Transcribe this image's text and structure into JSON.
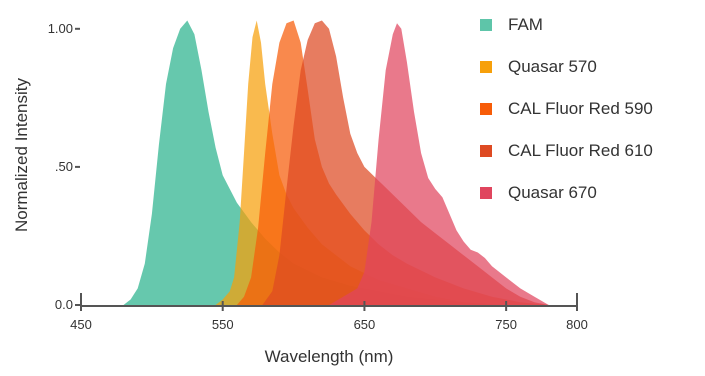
{
  "chart_data": {
    "type": "area",
    "title": "",
    "xlabel": "Wavelength (nm)",
    "ylabel": "Normalized Intensity",
    "xlim": [
      450,
      800
    ],
    "ylim": [
      0,
      1.05
    ],
    "x_ticks": [
      {
        "value": 450,
        "label": "450"
      },
      {
        "value": 550,
        "label": "550"
      },
      {
        "value": 650,
        "label": "650"
      },
      {
        "value": 750,
        "label": "750"
      },
      {
        "value": 800,
        "label": "800"
      }
    ],
    "y_ticks": [
      {
        "value": 0,
        "label": "0.0"
      },
      {
        "value": 0.5,
        "label": ".50"
      },
      {
        "value": 1.0,
        "label": "1.00"
      }
    ],
    "grid": false,
    "legend_position": "top-right",
    "series": [
      {
        "name": "FAM",
        "color": "#5ec5a9",
        "points": [
          [
            480,
            0
          ],
          [
            485,
            0.02
          ],
          [
            490,
            0.06
          ],
          [
            495,
            0.15
          ],
          [
            500,
            0.33
          ],
          [
            505,
            0.58
          ],
          [
            510,
            0.8
          ],
          [
            515,
            0.93
          ],
          [
            520,
            1.0
          ],
          [
            525,
            1.03
          ],
          [
            530,
            0.98
          ],
          [
            535,
            0.85
          ],
          [
            540,
            0.7
          ],
          [
            545,
            0.57
          ],
          [
            550,
            0.47
          ],
          [
            555,
            0.42
          ],
          [
            560,
            0.37
          ],
          [
            570,
            0.3
          ],
          [
            580,
            0.24
          ],
          [
            590,
            0.19
          ],
          [
            600,
            0.15
          ],
          [
            620,
            0.1
          ],
          [
            640,
            0.07
          ],
          [
            660,
            0.05
          ],
          [
            680,
            0.03
          ],
          [
            700,
            0.02
          ],
          [
            720,
            0.01
          ],
          [
            750,
            0
          ]
        ]
      },
      {
        "name": "Quasar 570",
        "color": "#f7a00a",
        "points": [
          [
            545,
            0
          ],
          [
            550,
            0.02
          ],
          [
            555,
            0.05
          ],
          [
            558,
            0.1
          ],
          [
            562,
            0.3
          ],
          [
            565,
            0.55
          ],
          [
            568,
            0.8
          ],
          [
            571,
            0.97
          ],
          [
            574,
            1.03
          ],
          [
            577,
            0.95
          ],
          [
            580,
            0.8
          ],
          [
            585,
            0.62
          ],
          [
            590,
            0.47
          ],
          [
            595,
            0.4
          ],
          [
            600,
            0.35
          ],
          [
            610,
            0.28
          ],
          [
            620,
            0.22
          ],
          [
            630,
            0.18
          ],
          [
            640,
            0.14
          ],
          [
            660,
            0.09
          ],
          [
            680,
            0.06
          ],
          [
            700,
            0.03
          ],
          [
            720,
            0.01
          ],
          [
            740,
            0
          ]
        ]
      },
      {
        "name": "CAL Fluor Red 590",
        "color": "#f75c08",
        "points": [
          [
            560,
            0
          ],
          [
            565,
            0.03
          ],
          [
            570,
            0.1
          ],
          [
            575,
            0.28
          ],
          [
            580,
            0.55
          ],
          [
            585,
            0.8
          ],
          [
            590,
            0.95
          ],
          [
            595,
            1.02
          ],
          [
            600,
            1.03
          ],
          [
            605,
            0.95
          ],
          [
            610,
            0.78
          ],
          [
            615,
            0.6
          ],
          [
            620,
            0.5
          ],
          [
            625,
            0.44
          ],
          [
            630,
            0.4
          ],
          [
            640,
            0.33
          ],
          [
            650,
            0.27
          ],
          [
            660,
            0.22
          ],
          [
            670,
            0.18
          ],
          [
            680,
            0.15
          ],
          [
            700,
            0.1
          ],
          [
            720,
            0.06
          ],
          [
            740,
            0.03
          ],
          [
            760,
            0.01
          ],
          [
            780,
            0
          ]
        ]
      },
      {
        "name": "CAL Fluor Red 610",
        "color": "#de4a22",
        "points": [
          [
            578,
            0
          ],
          [
            585,
            0.05
          ],
          [
            590,
            0.18
          ],
          [
            595,
            0.42
          ],
          [
            600,
            0.65
          ],
          [
            605,
            0.85
          ],
          [
            610,
            0.96
          ],
          [
            615,
            1.02
          ],
          [
            620,
            1.03
          ],
          [
            625,
            1.0
          ],
          [
            630,
            0.9
          ],
          [
            635,
            0.75
          ],
          [
            640,
            0.62
          ],
          [
            645,
            0.55
          ],
          [
            650,
            0.5
          ],
          [
            660,
            0.45
          ],
          [
            670,
            0.4
          ],
          [
            680,
            0.35
          ],
          [
            690,
            0.3
          ],
          [
            700,
            0.26
          ],
          [
            710,
            0.22
          ],
          [
            720,
            0.18
          ],
          [
            730,
            0.14
          ],
          [
            740,
            0.1
          ],
          [
            750,
            0.06
          ],
          [
            760,
            0.03
          ],
          [
            770,
            0.01
          ],
          [
            780,
            0
          ]
        ]
      },
      {
        "name": "Quasar 670",
        "color": "#e0455e",
        "points": [
          [
            625,
            0
          ],
          [
            635,
            0.03
          ],
          [
            645,
            0.06
          ],
          [
            650,
            0.12
          ],
          [
            655,
            0.3
          ],
          [
            660,
            0.6
          ],
          [
            665,
            0.85
          ],
          [
            670,
            0.98
          ],
          [
            673,
            1.02
          ],
          [
            676,
            1.0
          ],
          [
            680,
            0.88
          ],
          [
            685,
            0.7
          ],
          [
            690,
            0.55
          ],
          [
            695,
            0.46
          ],
          [
            700,
            0.42
          ],
          [
            705,
            0.39
          ],
          [
            710,
            0.33
          ],
          [
            715,
            0.27
          ],
          [
            720,
            0.23
          ],
          [
            725,
            0.2
          ],
          [
            730,
            0.19
          ],
          [
            735,
            0.17
          ],
          [
            740,
            0.14
          ],
          [
            750,
            0.1
          ],
          [
            760,
            0.06
          ],
          [
            770,
            0.03
          ],
          [
            780,
            0
          ]
        ]
      }
    ]
  }
}
